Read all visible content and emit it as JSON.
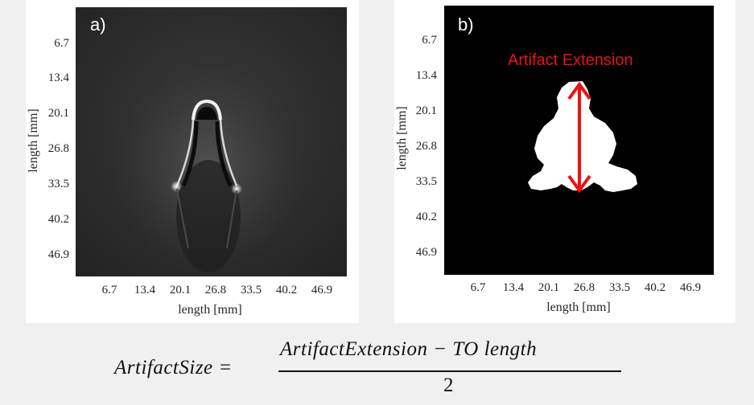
{
  "panel_a": {
    "letter": "a)",
    "xlabel": "length [mm]",
    "ylabel": "length [mm]",
    "xticks": [
      "6.7",
      "13.4",
      "20.1",
      "26.8",
      "33.5",
      "40.2",
      "46.9"
    ],
    "yticks": [
      "6.7",
      "13.4",
      "20.1",
      "26.8",
      "33.5",
      "40.2",
      "46.9"
    ]
  },
  "panel_b": {
    "letter": "b)",
    "annotation": "Artifact Extension",
    "xlabel": "length [mm]",
    "ylabel": "length [mm]",
    "xticks": [
      "6.7",
      "13.4",
      "20.1",
      "26.8",
      "33.5",
      "40.2",
      "46.9"
    ],
    "yticks": [
      "6.7",
      "13.4",
      "20.1",
      "26.8",
      "33.5",
      "40.2",
      "46.9"
    ]
  },
  "formula": {
    "lhs": "ArtifactSize =",
    "numerator": "ArtifactExtension − TO length",
    "denominator": "2"
  },
  "colors": {
    "annotation": "#ee1111",
    "background": "#f0f0f0"
  }
}
